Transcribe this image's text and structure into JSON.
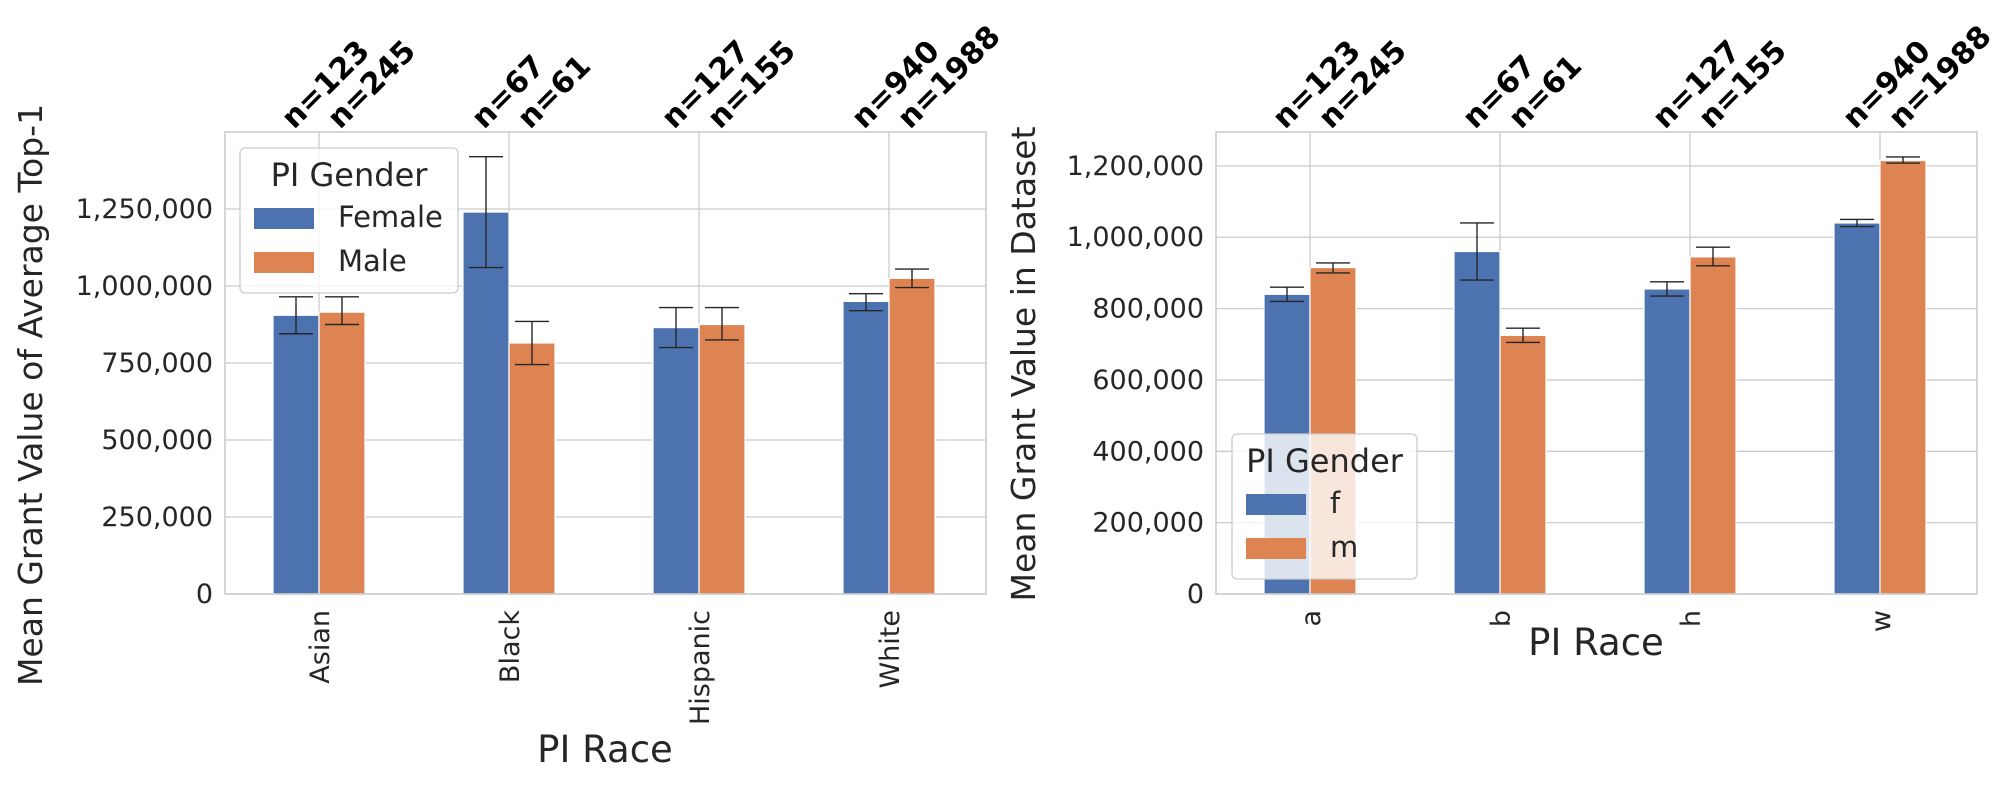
{
  "chart_data": [
    {
      "type": "bar",
      "xlabel": "PI Race",
      "ylabel": "Mean Grant Value of Average Top-1",
      "ylim": [
        0,
        1500000
      ],
      "yticks": [
        0,
        250000,
        500000,
        750000,
        1000000,
        1250000
      ],
      "ytick_labels": [
        "0",
        "250,000",
        "500,000",
        "750,000",
        "1,000,000",
        "1,250,000"
      ],
      "categories": [
        "Asian",
        "Black",
        "Hispanic",
        "White"
      ],
      "legend": {
        "title": "PI Gender",
        "placement": "upper-left"
      },
      "series": [
        {
          "name": "Female",
          "color": "#4c72b0",
          "values": [
            905000,
            1240000,
            865000,
            950000
          ],
          "err_low": [
            845000,
            1060000,
            800000,
            920000
          ],
          "err_high": [
            965000,
            1420000,
            930000,
            975000
          ],
          "counts": [
            "n=123",
            "n=67",
            "n=127",
            "n=940"
          ]
        },
        {
          "name": "Male",
          "color": "#dd8452",
          "values": [
            915000,
            815000,
            875000,
            1025000
          ],
          "err_low": [
            875000,
            745000,
            825000,
            995000
          ],
          "err_high": [
            965000,
            885000,
            930000,
            1055000
          ],
          "counts": [
            "n=245",
            "n=61",
            "n=155",
            "n=1988"
          ]
        }
      ],
      "grid": true
    },
    {
      "type": "bar",
      "xlabel": "PI Race",
      "ylabel": "Mean Grant Value in Dataset",
      "ylim": [
        0,
        1295000
      ],
      "yticks": [
        0,
        200000,
        400000,
        600000,
        800000,
        1000000,
        1200000
      ],
      "ytick_labels": [
        "0",
        "200,000",
        "400,000",
        "600,000",
        "800,000",
        "1,000,000",
        "1,200,000"
      ],
      "categories": [
        "a",
        "b",
        "h",
        "w"
      ],
      "legend": {
        "title": "PI Gender",
        "placement": "lower-left"
      },
      "series": [
        {
          "name": "f",
          "color": "#4c72b0",
          "values": [
            840000,
            960000,
            855000,
            1040000
          ],
          "err_low": [
            820000,
            880000,
            835000,
            1030000
          ],
          "err_high": [
            860000,
            1040000,
            875000,
            1050000
          ],
          "counts": [
            "n=123",
            "n=67",
            "n=127",
            "n=940"
          ]
        },
        {
          "name": "m",
          "color": "#dd8452",
          "values": [
            915000,
            725000,
            945000,
            1215000
          ],
          "err_low": [
            900000,
            705000,
            920000,
            1208000
          ],
          "err_high": [
            928000,
            745000,
            972000,
            1225000
          ],
          "counts": [
            "n=245",
            "n=61",
            "n=155",
            "n=1988"
          ]
        }
      ],
      "grid": true
    }
  ]
}
